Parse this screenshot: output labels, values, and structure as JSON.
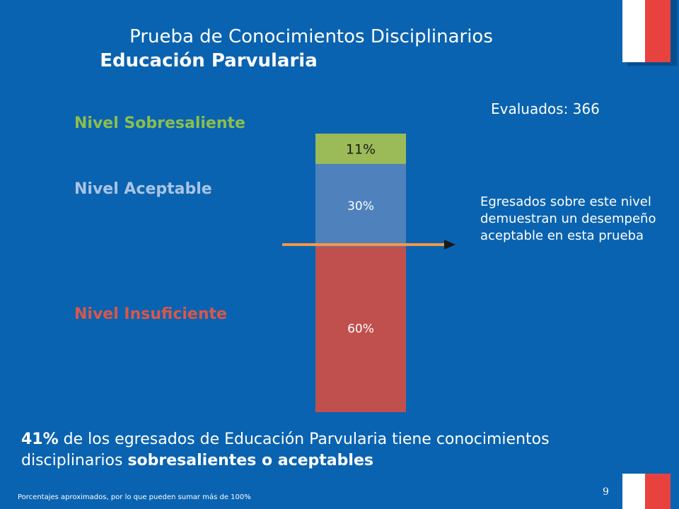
{
  "title": {
    "line1": "Prueba de Conocimientos Disciplinarios",
    "line2": "Educación Parvularia"
  },
  "evaluados": "Evaluados: 366",
  "levels": {
    "sobresaliente": "Nivel Sobresaliente",
    "aceptable": "Nivel Aceptable",
    "insuficiente": "Nivel Insuficiente"
  },
  "note": "Egresados sobre este nivel demuestran un desempeño aceptable en esta prueba",
  "summary": {
    "pct": "41%",
    "text1": " de los egresados de Educación Parvularia tiene conocimientos disciplinarios ",
    "bold": "sobresalientes o aceptables"
  },
  "footnote": "Porcentajes aproximados, por lo que pueden sumar más de 100%",
  "page_number": "9",
  "colors": {
    "background": "#0A63B0",
    "sobresaliente": "#9BBB59",
    "aceptable": "#4F81BD",
    "insuficiente": "#C0504D",
    "arrow": "#F79646",
    "accent_red": "#E8423F"
  },
  "chart_data": {
    "type": "bar",
    "stacked": true,
    "categories": [
      ""
    ],
    "series": [
      {
        "name": "Nivel Insuficiente",
        "values": [
          60
        ],
        "label": "60%",
        "color": "#C0504D"
      },
      {
        "name": "Nivel Aceptable",
        "values": [
          30
        ],
        "label": "30%",
        "color": "#4F81BD"
      },
      {
        "name": "Nivel Sobresaliente",
        "values": [
          11
        ],
        "label": "11%",
        "color": "#9BBB59"
      }
    ],
    "ylim": [
      0,
      101
    ],
    "title": "",
    "xlabel": "",
    "ylabel": ""
  }
}
